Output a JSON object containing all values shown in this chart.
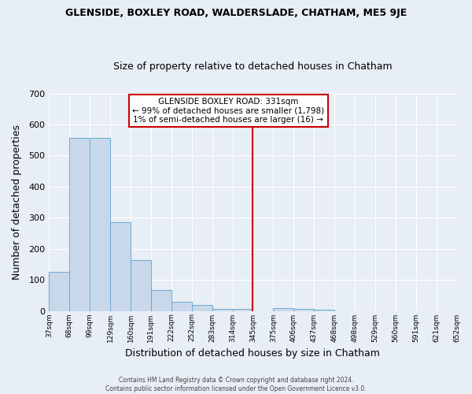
{
  "title": "GLENSIDE, BOXLEY ROAD, WALDERSLADE, CHATHAM, ME5 9JE",
  "subtitle": "Size of property relative to detached houses in Chatham",
  "xlabel": "Distribution of detached houses by size in Chatham",
  "ylabel": "Number of detached properties",
  "bar_values": [
    125,
    558,
    557,
    285,
    163,
    68,
    30,
    20,
    7,
    7,
    0,
    10,
    7,
    4,
    0,
    0,
    0,
    0,
    0,
    0
  ],
  "bin_labels": [
    "37sqm",
    "68sqm",
    "99sqm",
    "129sqm",
    "160sqm",
    "191sqm",
    "222sqm",
    "252sqm",
    "283sqm",
    "314sqm",
    "345sqm",
    "375sqm",
    "406sqm",
    "437sqm",
    "468sqm",
    "498sqm",
    "529sqm",
    "560sqm",
    "591sqm",
    "621sqm",
    "652sqm"
  ],
  "bar_color": "#c8d8ea",
  "bar_edge_color": "#6aaad4",
  "background_color": "#e8eef5",
  "grid_color": "#ffffff",
  "vline_color": "#cc0000",
  "annotation_title": "GLENSIDE BOXLEY ROAD: 331sqm",
  "annotation_line1": "← 99% of detached houses are smaller (1,798)",
  "annotation_line2": "1% of semi-detached houses are larger (16) →",
  "annotation_box_color": "#ffffff",
  "annotation_border_color": "#cc0000",
  "ylim": [
    0,
    700
  ],
  "yticks": [
    0,
    100,
    200,
    300,
    400,
    500,
    600,
    700
  ],
  "footer_line1": "Contains HM Land Registry data © Crown copyright and database right 2024.",
  "footer_line2": "Contains public sector information licensed under the Open Government Licence v3.0."
}
